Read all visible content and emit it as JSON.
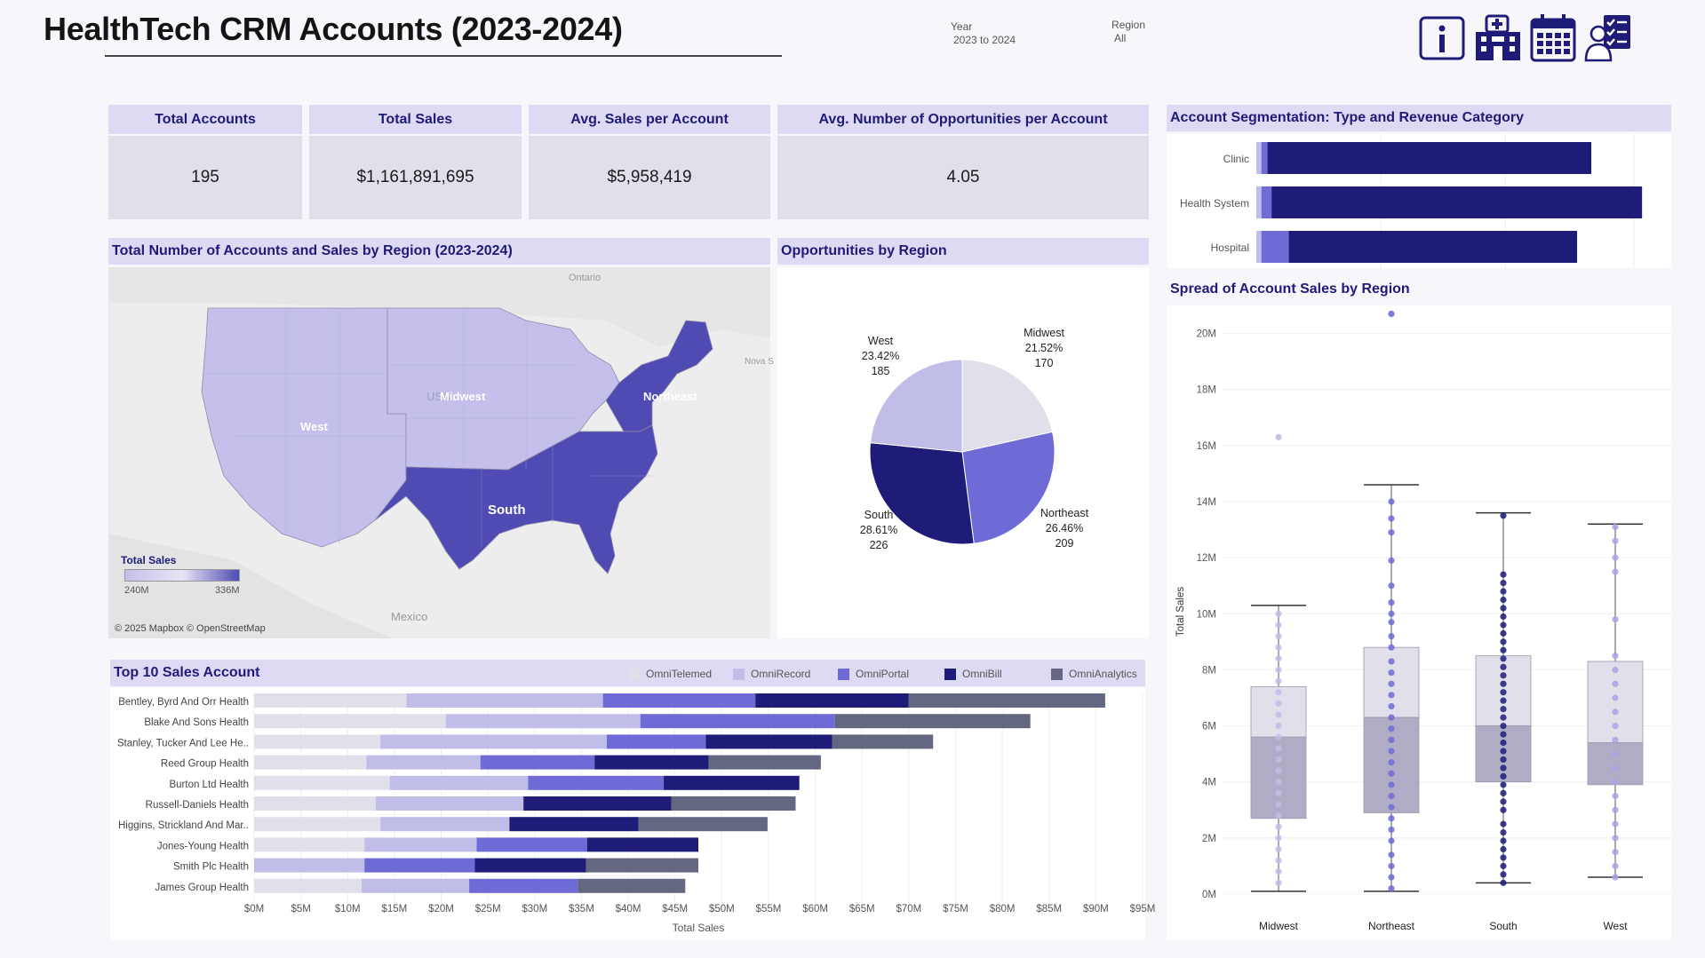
{
  "header": {
    "title": "HealthTech CRM Accounts (2023-2024)",
    "filters": {
      "year_label": "Year",
      "year_value": "2023 to 2024",
      "region_label": "Region",
      "region_value": "All"
    },
    "icons": [
      "info-icon",
      "hospital-icon",
      "calendar-icon",
      "doctor-checklist-icon"
    ]
  },
  "kpis": [
    {
      "label": "Total Accounts",
      "value": "195"
    },
    {
      "label": "Total Sales",
      "value": "$1,161,891,695"
    },
    {
      "label": "Avg. Sales per Account",
      "value": "$5,958,419"
    },
    {
      "label": "Avg. Number of Opportunities per Account",
      "value": "4.05"
    }
  ],
  "map_panel": {
    "title": "Total Number of Accounts and Sales by Region (2023-2024)",
    "regions": [
      "West",
      "Midwest",
      "Northeast",
      "South"
    ],
    "background_labels": {
      "country_usa": "USA",
      "country_mexico": "Mexico",
      "ontario": "Ontario",
      "nova_scotia": "Nova S"
    },
    "legend": {
      "title": "Total Sales",
      "min": "240M",
      "max": "336M"
    },
    "attribution": "© 2025 Mapbox © OpenStreetMap"
  },
  "chart_data": [
    {
      "type": "pie",
      "title": "Opportunities by Region",
      "slices": [
        {
          "label": "Midwest",
          "percent": "21.52%",
          "value": 170,
          "color": "#e1e0ea"
        },
        {
          "label": "Northeast",
          "percent": "26.46%",
          "value": 209,
          "color": "#6e6bd6"
        },
        {
          "label": "South",
          "percent": "28.61%",
          "value": 226,
          "color": "#1e1c78"
        },
        {
          "label": "West",
          "percent": "23.42%",
          "value": 185,
          "color": "#c0bde9"
        }
      ]
    },
    {
      "type": "bar",
      "orientation": "horizontal",
      "stacked": true,
      "title": "Account Segmentation: Type and Revenue Category",
      "categories": [
        "Clinic",
        "Health System",
        "Hospital"
      ],
      "series": [
        {
          "values": [
            0.5,
            0.5,
            0.5
          ],
          "color": "#c0bde9"
        },
        {
          "values": [
            0.6,
            1.0,
            2.7
          ],
          "color": "#6e6bd6"
        },
        {
          "values": [
            31.9,
            36.5,
            28.4
          ],
          "color": "#1e1c78"
        }
      ],
      "xlim": [
        0,
        40
      ]
    },
    {
      "type": "bar",
      "orientation": "horizontal",
      "stacked": true,
      "title": "Top 10 Sales Account",
      "categories": [
        "Bentley, Byrd And Orr Health",
        "Blake And Sons Health",
        "Stanley, Tucker And Lee He..",
        "Reed Group Health",
        "Burton Ltd Health",
        "Russell-Daniels Health",
        "Higgins, Strickland And Mar..",
        "Jones-Young Health",
        "Smith Plc Health",
        "James Group Health"
      ],
      "series": [
        {
          "name": "OmniTelemed",
          "color": "#e1e0ea",
          "values": [
            16.3,
            20.5,
            13.5,
            12.0,
            14.5,
            13.0,
            13.5,
            11.8,
            0,
            11.5
          ]
        },
        {
          "name": "OmniRecord",
          "color": "#c0bde9",
          "values": [
            21.0,
            20.8,
            24.2,
            12.2,
            14.8,
            15.8,
            13.8,
            12.0,
            11.8,
            11.5
          ]
        },
        {
          "name": "OmniPortal",
          "color": "#6e6bd6",
          "values": [
            16.3,
            20.8,
            10.6,
            12.2,
            14.5,
            0,
            0,
            11.8,
            11.8,
            11.6
          ]
        },
        {
          "name": "OmniBill",
          "color": "#1e1c78",
          "values": [
            16.4,
            0,
            13.5,
            12.2,
            14.5,
            15.8,
            13.8,
            11.9,
            11.9,
            0
          ]
        },
        {
          "name": "OmniAnalytics",
          "color": "#636880",
          "values": [
            21.0,
            20.9,
            10.8,
            12.0,
            0,
            13.3,
            13.8,
            0,
            12.0,
            11.5
          ]
        }
      ],
      "xlabel": "Total Sales",
      "xticks": [
        "$0M",
        "$5M",
        "$10M",
        "$15M",
        "$20M",
        "$25M",
        "$30M",
        "$35M",
        "$40M",
        "$45M",
        "$50M",
        "$55M",
        "$60M",
        "$65M",
        "$70M",
        "$75M",
        "$80M",
        "$85M",
        "$90M",
        "$95M"
      ],
      "xlim": [
        0,
        95
      ]
    },
    {
      "type": "box",
      "title": "Spread of Account Sales by Region",
      "ylabel": "Total Sales",
      "yticks": [
        "0M",
        "2M",
        "4M",
        "6M",
        "8M",
        "10M",
        "12M",
        "14M",
        "16M",
        "18M",
        "20M"
      ],
      "ylim": [
        0,
        21
      ],
      "groups": [
        {
          "name": "Midwest",
          "min": 0.1,
          "q1": 2.7,
          "median": 5.6,
          "q3": 7.4,
          "max": 10.3,
          "outliers": [
            16.3
          ],
          "point_color": "#c0bde9",
          "points": [
            0.4,
            0.8,
            1.2,
            1.6,
            2.0,
            2.4,
            2.8,
            3.2,
            3.6,
            4.0,
            4.4,
            4.8,
            5.2,
            5.6,
            6.0,
            6.4,
            6.8,
            7.2,
            7.6,
            8.0,
            8.4,
            8.8,
            9.2,
            9.6,
            10.0
          ]
        },
        {
          "name": "Northeast",
          "min": 0.1,
          "q1": 2.9,
          "median": 6.3,
          "q3": 8.8,
          "max": 14.6,
          "outliers": [
            20.7
          ],
          "point_color": "#6e6bd6",
          "points": [
            0.2,
            0.6,
            1.0,
            1.4,
            1.9,
            2.3,
            2.7,
            3.1,
            3.5,
            3.9,
            4.3,
            4.7,
            5.1,
            5.5,
            5.9,
            6.3,
            6.7,
            7.1,
            7.5,
            7.9,
            8.3,
            8.8,
            9.2,
            9.7,
            10.0,
            10.4,
            11.0,
            11.9,
            12.9,
            13.4,
            14.0
          ]
        },
        {
          "name": "South",
          "min": 0.4,
          "q1": 4.0,
          "median": 6.0,
          "q3": 8.5,
          "max": 13.6,
          "outliers": [],
          "point_color": "#1e1c78",
          "points": [
            0.4,
            0.7,
            1.0,
            1.3,
            1.6,
            1.9,
            2.2,
            2.5,
            3.0,
            3.3,
            3.6,
            3.9,
            4.2,
            4.5,
            4.8,
            5.1,
            5.4,
            5.7,
            6.0,
            6.3,
            6.6,
            6.9,
            7.2,
            7.5,
            7.8,
            8.1,
            8.4,
            8.7,
            9.0,
            9.3,
            9.6,
            9.9,
            10.2,
            10.5,
            10.8,
            11.1,
            11.4,
            13.5
          ]
        },
        {
          "name": "West",
          "min": 0.6,
          "q1": 3.9,
          "median": 5.4,
          "q3": 8.3,
          "max": 13.2,
          "outliers": [],
          "point_color": "#a7a4e3",
          "points": [
            0.6,
            1.0,
            1.5,
            2.0,
            2.5,
            3.0,
            3.5,
            4.0,
            4.5,
            5.0,
            5.5,
            6.0,
            6.5,
            7.0,
            7.5,
            8.0,
            8.5,
            9.8,
            11.5,
            12.0,
            12.6,
            13.1
          ]
        }
      ]
    }
  ]
}
